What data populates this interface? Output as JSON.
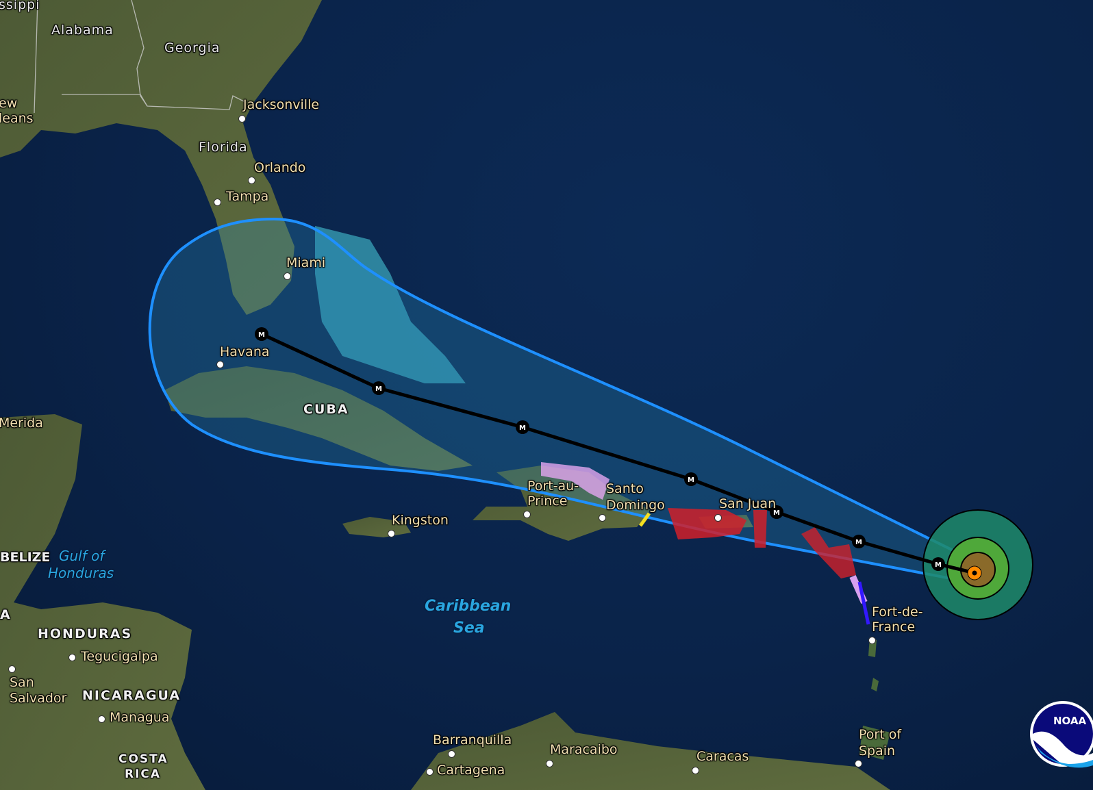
{
  "map": {
    "basemap": "satellite imagery",
    "colors": {
      "cone_outline": "#1e90ff",
      "track_line": "#000000",
      "hurricane_warning": "#d0202a",
      "tropical_storm_warning": "#2222ff",
      "hurricane_watch": "#e8a0f0",
      "tropical_storm_watch": "#f5e020",
      "wind_34kt": "#1f8a6a",
      "wind_50kt": "#4fa83a",
      "wind_64kt": "#8a6a2a",
      "current_center": "#ff8a00"
    },
    "track_marker_label": "M",
    "track_marker_count": 7,
    "labels": {
      "mississippi": "ssippi",
      "alabama": "Alabama",
      "georgia": "Georgia",
      "new_orleans_1": "ew",
      "new_orleans_2": "leans",
      "jacksonville": "Jacksonville",
      "florida": "Florida",
      "orlando": "Orlando",
      "tampa": "Tampa",
      "miami": "Miami",
      "havana": "Havana",
      "cuba": "CUBA",
      "merida": "Merida",
      "port_au_prince_1": "Port-au-",
      "port_au_prince_2": "Prince",
      "santo_domingo_1": "Santo",
      "santo_domingo_2": "Domingo",
      "san_juan": "San Juan",
      "kingston": "Kingston",
      "belize": "BELIZE",
      "gulf_of_honduras_1": "Gulf of",
      "gulf_of_honduras_2": "Honduras",
      "guatemala": "A",
      "caribbean_sea_1": "Caribbean",
      "caribbean_sea_2": "Sea",
      "fort_de_france_1": "Fort-de-",
      "fort_de_france_2": "France",
      "honduras": "HONDURAS",
      "tegucigalpa": "Tegucigalpa",
      "san_salvador_1": "San",
      "san_salvador_2": "Salvador",
      "nicaragua": "NICARAGUA",
      "managua": "Managua",
      "costa_rica_1": "COSTA",
      "costa_rica_2": "RICA",
      "barranquilla": "Barranquilla",
      "cartagena": "Cartagena",
      "maracaibo": "Maracaibo",
      "caracas": "Caracas",
      "port_of_spain_1": "Port of",
      "port_of_spain_2": "Spain"
    },
    "logo": {
      "text": "NOAA"
    }
  }
}
